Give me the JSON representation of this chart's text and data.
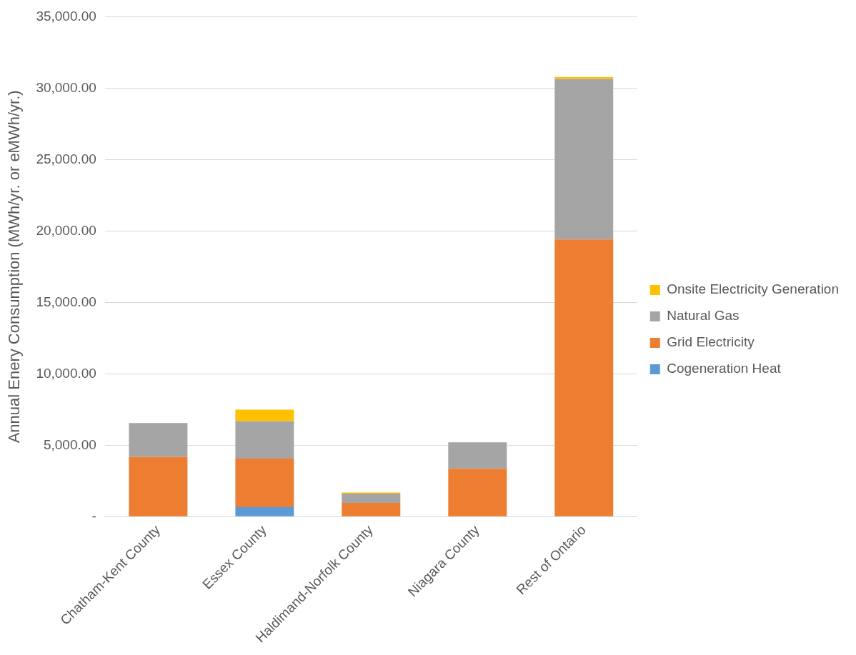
{
  "chart_data": {
    "type": "bar",
    "stacked": true,
    "ylabel": "Annual Enery Consumption (MWh/yr. or eMWh/yr.)",
    "categories": [
      "Chatham-Kent County",
      "Essex County",
      "Haldimand-Norfolk County",
      "Niagara County",
      "Rest of Ontario"
    ],
    "series": [
      {
        "name": "Cogeneration Heat",
        "color": "#5b9bd5",
        "values": [
          0,
          670,
          0,
          0,
          0
        ]
      },
      {
        "name": "Grid Electricity",
        "color": "#ed7d31",
        "values": [
          4180,
          3400,
          970,
          3350,
          19410
        ]
      },
      {
        "name": "Natural Gas",
        "color": "#a5a5a5",
        "values": [
          2380,
          2610,
          650,
          1850,
          11230
        ]
      },
      {
        "name": "Onsite Electricity Generation",
        "color": "#ffc000",
        "values": [
          0,
          810,
          70,
          0,
          140
        ]
      }
    ],
    "ylim": [
      0,
      35000
    ],
    "yticks": [
      {
        "value": 0,
        "label": "-"
      },
      {
        "value": 5000,
        "label": "5,000.00"
      },
      {
        "value": 10000,
        "label": "10,000.00"
      },
      {
        "value": 15000,
        "label": "15,000.00"
      },
      {
        "value": 20000,
        "label": "20,000.00"
      },
      {
        "value": 25000,
        "label": "25,000.00"
      },
      {
        "value": 30000,
        "label": "30,000.00"
      },
      {
        "value": 35000,
        "label": "35,000.00"
      }
    ],
    "grid": "y",
    "legend": "right"
  }
}
